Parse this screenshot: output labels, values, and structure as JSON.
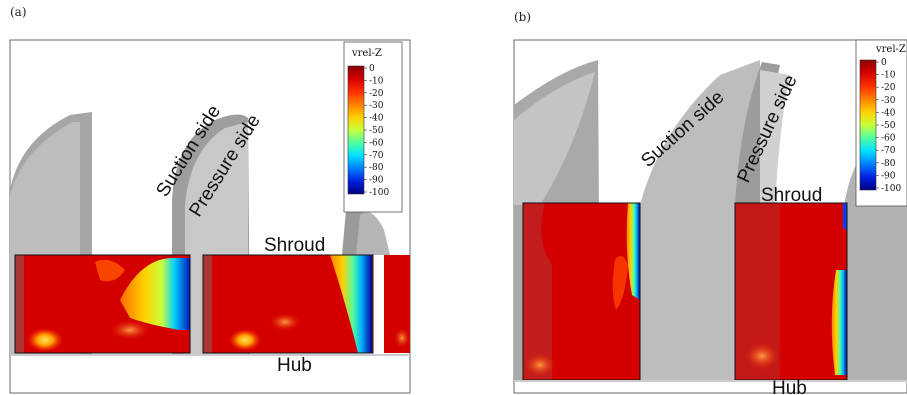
{
  "panels": [
    {
      "tag": "(a)",
      "labels": {
        "suction": "Suction side",
        "pressure": "Pressure side",
        "shroud": "Shroud",
        "hub": "Hub"
      }
    },
    {
      "tag": "(b)",
      "labels": {
        "suction": "Suction side",
        "pressure": "Pressure side",
        "shroud": "Shroud",
        "hub": "Hub"
      }
    }
  ],
  "colorbar": {
    "title": "vrel-Z",
    "ticks": [
      "0",
      "-10",
      "-20",
      "-30",
      "-40",
      "-50",
      "-60",
      "-70",
      "-80",
      "-90",
      "-100"
    ],
    "colors": [
      "#8b0000",
      "#ff0000",
      "#ff6a00",
      "#ffaa00",
      "#ffea00",
      "#c8ff3c",
      "#5aff9c",
      "#00e6ff",
      "#0090ff",
      "#0028ff",
      "#000090"
    ]
  }
}
